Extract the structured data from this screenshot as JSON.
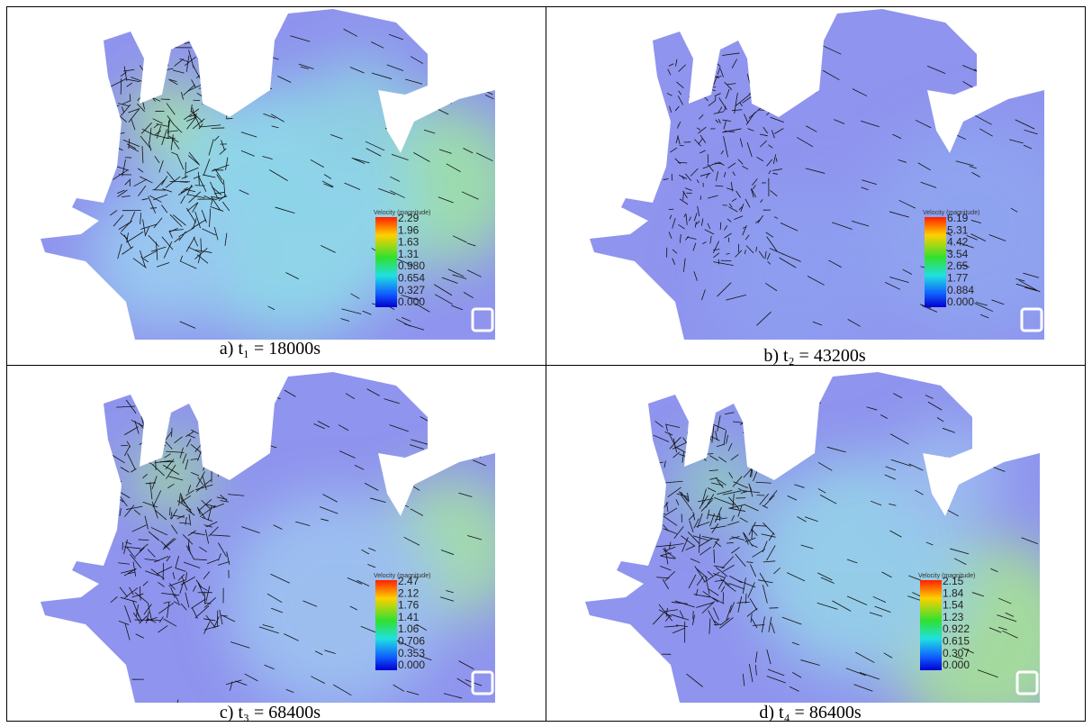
{
  "panels": [
    {
      "caption": "a) t₁ = 18000s",
      "legend_title": "Velocity (magnitude)",
      "legend_labels": [
        "2.29",
        "1.96",
        "1.63",
        "1.31",
        "0.980",
        "0.654",
        "0.327",
        "0.000"
      ]
    },
    {
      "caption": "b) t₂ = 43200s",
      "legend_title": "Velocity (magnitude)",
      "legend_labels": [
        "6.19",
        "5.31",
        "4.42",
        "3.54",
        "2.65",
        "1.77",
        "0.884",
        "0.000"
      ]
    },
    {
      "caption": "c) t₃ = 68400s",
      "legend_title": "Velocity (magnitude)",
      "legend_labels": [
        "2.47",
        "2.12",
        "1.76",
        "1.41",
        "1.06",
        "0.706",
        "0.353",
        "0.000"
      ]
    },
    {
      "caption": "d) t₄ = 86400s",
      "legend_title": "Velocity (magnitude)",
      "legend_labels": [
        "2.15",
        "1.84",
        "1.54",
        "1.23",
        "0.922",
        "0.615",
        "0.307",
        "0.000"
      ]
    }
  ]
}
